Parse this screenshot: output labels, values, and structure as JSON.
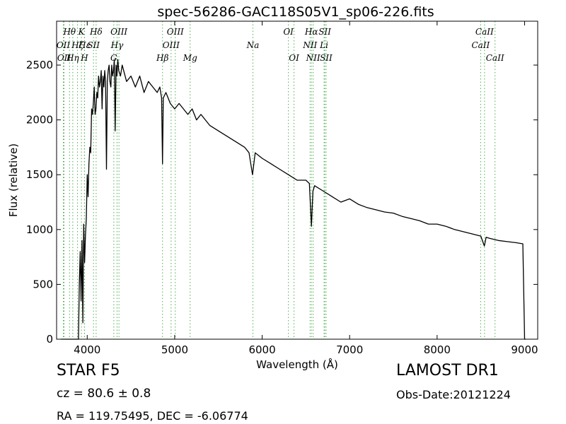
{
  "chart_data": {
    "type": "line",
    "title": "spec-56286-GAC118S05V1_sp06-226.fits",
    "xlabel": "Wavelength (Å)",
    "ylabel": "Flux (relative)",
    "xlim": [
      3650,
      9150
    ],
    "ylim": [
      0,
      2900
    ],
    "xticks": [
      4000,
      5000,
      6000,
      7000,
      8000,
      9000
    ],
    "yticks": [
      0,
      500,
      1000,
      1500,
      2000,
      2500
    ],
    "grid": false,
    "line_color": "#000000",
    "marker_color": "#4caf50",
    "series": [
      {
        "x": [
          3700,
          3880,
          3900,
          3910,
          3920,
          3930,
          3940,
          3950,
          3960,
          3970,
          3980,
          3990,
          4000,
          4010,
          4020,
          4030,
          4040,
          4050,
          4060,
          4070,
          4080,
          4090,
          4100,
          4110,
          4120,
          4130,
          4140,
          4150,
          4160,
          4170,
          4180,
          4190,
          4200,
          4210,
          4220,
          4230,
          4240,
          4250,
          4260,
          4270,
          4280,
          4290,
          4300,
          4310,
          4320,
          4330,
          4340,
          4350,
          4360,
          4380,
          4400,
          4450,
          4500,
          4550,
          4600,
          4650,
          4700,
          4750,
          4800,
          4830,
          4850,
          4861,
          4870,
          4900,
          4950,
          5000,
          5050,
          5100,
          5150,
          5200,
          5250,
          5300,
          5400,
          5500,
          5600,
          5700,
          5800,
          5850,
          5890,
          5920,
          6000,
          6100,
          6200,
          6300,
          6400,
          6500,
          6540,
          6563,
          6580,
          6600,
          6700,
          6800,
          6900,
          7000,
          7100,
          7200,
          7300,
          7400,
          7500,
          7600,
          7700,
          7800,
          7900,
          8000,
          8100,
          8200,
          8300,
          8400,
          8500,
          8540,
          8560,
          8600,
          8700,
          8800,
          8900,
          8980,
          9000,
          9010
        ],
        "y": [
          0,
          0,
          0,
          500,
          800,
          350,
          900,
          150,
          1050,
          700,
          950,
          1100,
          1500,
          1300,
          1600,
          1750,
          1700,
          2100,
          2050,
          2150,
          2300,
          2050,
          2100,
          2250,
          2200,
          2400,
          2300,
          2350,
          2450,
          2100,
          2400,
          2300,
          2450,
          2350,
          1550,
          2350,
          2450,
          2500,
          2350,
          2300,
          2500,
          2400,
          2450,
          2550,
          1900,
          2500,
          2400,
          2550,
          2450,
          2400,
          2500,
          2350,
          2400,
          2300,
          2400,
          2250,
          2350,
          2300,
          2250,
          2300,
          2200,
          1600,
          2200,
          2250,
          2150,
          2100,
          2150,
          2100,
          2050,
          2100,
          2000,
          2050,
          1950,
          1900,
          1850,
          1800,
          1750,
          1700,
          1500,
          1700,
          1650,
          1600,
          1550,
          1500,
          1450,
          1450,
          1420,
          1030,
          1350,
          1400,
          1350,
          1300,
          1250,
          1280,
          1230,
          1200,
          1180,
          1160,
          1150,
          1120,
          1100,
          1080,
          1050,
          1050,
          1030,
          1000,
          980,
          960,
          940,
          850,
          930,
          920,
          900,
          890,
          880,
          870,
          0,
          0
        ]
      }
    ],
    "spectral_lines": [
      {
        "wavelength": 3727,
        "label": "OII",
        "row": 2
      },
      {
        "wavelength": 3735,
        "label": "OII",
        "row": 3
      },
      {
        "wavelength": 3798,
        "label": "Hθ",
        "row": 1
      },
      {
        "wavelength": 3835,
        "label": "Hη",
        "row": 3
      },
      {
        "wavelength": 3889,
        "label": "Hζ",
        "row": 2
      },
      {
        "wavelength": 3934,
        "label": "K",
        "row": 1
      },
      {
        "wavelength": 3968,
        "label": "H",
        "row": 3
      },
      {
        "wavelength": 3970,
        "label": "Hε",
        "row": 2
      },
      {
        "wavelength": 4072,
        "label": "SII",
        "row": 2
      },
      {
        "wavelength": 4102,
        "label": "Hδ",
        "row": 1
      },
      {
        "wavelength": 4304,
        "label": "G",
        "row": 3
      },
      {
        "wavelength": 4341,
        "label": "Hγ",
        "row": 2
      },
      {
        "wavelength": 4363,
        "label": "OIII",
        "row": 1
      },
      {
        "wavelength": 4861,
        "label": "Hβ",
        "row": 3
      },
      {
        "wavelength": 4959,
        "label": "OIII",
        "row": 2
      },
      {
        "wavelength": 5007,
        "label": "OIII",
        "row": 1
      },
      {
        "wavelength": 5177,
        "label": "Mg",
        "row": 3
      },
      {
        "wavelength": 5894,
        "label": "Na",
        "row": 2
      },
      {
        "wavelength": 6300,
        "label": "OI",
        "row": 1
      },
      {
        "wavelength": 6364,
        "label": "OI",
        "row": 3
      },
      {
        "wavelength": 6548,
        "label": "NII",
        "row": 2
      },
      {
        "wavelength": 6563,
        "label": "Hα",
        "row": 1
      },
      {
        "wavelength": 6583,
        "label": "NII",
        "row": 3
      },
      {
        "wavelength": 6708,
        "label": "Li",
        "row": 2
      },
      {
        "wavelength": 6716,
        "label": "SII",
        "row": 1
      },
      {
        "wavelength": 6731,
        "label": "SII",
        "row": 3
      },
      {
        "wavelength": 8498,
        "label": "CaII",
        "row": 2
      },
      {
        "wavelength": 8542,
        "label": "CaII",
        "row": 1
      },
      {
        "wavelength": 8662,
        "label": "CaII",
        "row": 3
      }
    ]
  },
  "footer": {
    "class_label": "STAR   F5",
    "cz_label": "cz = 80.6 ± 0.8",
    "radec_label": "RA = 119.75495, DEC = -6.06774",
    "survey_label": "LAMOST DR1",
    "obsdate_label": "Obs-Date:20121224"
  }
}
